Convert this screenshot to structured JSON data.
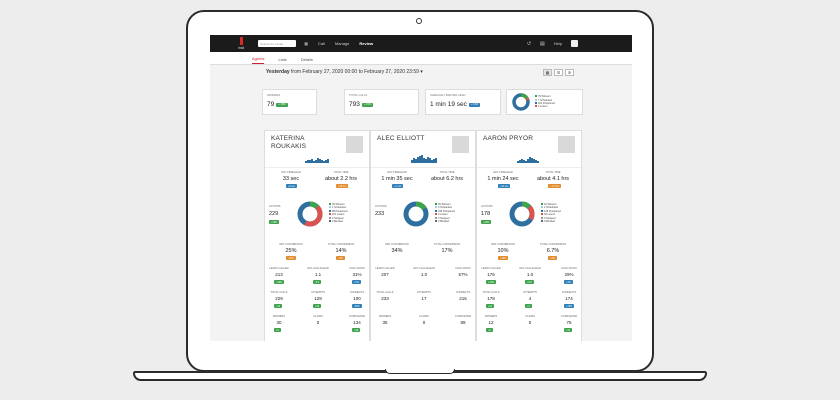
{
  "app": {
    "logo_text": "insit"
  },
  "topbar": {
    "search_placeholder": "Search for a lead",
    "nav": [
      {
        "label": "Call"
      },
      {
        "label": "Manage"
      },
      {
        "label": "Review"
      }
    ],
    "help_label": "Help"
  },
  "tabs": [
    {
      "label": "Agents"
    },
    {
      "label": "Lists"
    },
    {
      "label": "Details"
    }
  ],
  "date_filter": {
    "prefix": "Yesterday",
    "range": "from February 27, 2020 00:00 to February 27, 2020 23:59"
  },
  "summary": {
    "winners": {
      "label": "Winners",
      "value": "79",
      "badge": "+ 18%"
    },
    "total_calls": {
      "label": "Total Calls",
      "value": "793",
      "badge": "+ 15%"
    },
    "avg_time": {
      "label": "Average Time Per Lead",
      "value": "1 min 19 sec",
      "badge": "+ 11%"
    },
    "legend": [
      "79 Winners",
      "7 Scheduled",
      "424 Postponed",
      "3 Losers"
    ]
  },
  "agents": [
    {
      "name": "KATERINA ROUKAKIS",
      "avg_time_label": "Avg time/lead",
      "avg_time": "33 sec",
      "avg_badge": "+9 sec",
      "total_time_label": "Total time",
      "total_time": "about 2.2 hrs",
      "total_badge": "+19 hrs",
      "actions_label": "Actions",
      "actions": "229",
      "actions_badge": "+19%",
      "legend": [
        "30 Winners",
        "1 Scheduled",
        "98 Postponed",
        "101 Losers",
        "0 Stopped",
        "0 Blocked"
      ],
      "net_conv_label": "Net conversion",
      "net_conv": "25%",
      "net_badge": "-13%",
      "tot_conv_label": "Total conversion",
      "tot_conv": "14%",
      "tot_badge": "+3%",
      "leads_called_label": "Leads called",
      "leads_called": "213",
      "lc_badge": "+19%",
      "avg_calls_label": "Avg calls/lead",
      "avg_calls": "1.1",
      "ac_badge": "-0.0",
      "cold_ratio_label": "Cold ratio",
      "cold_ratio": "31%",
      "cr_badge": "+7%",
      "total_calls_label": "Total calls",
      "total_calls": "229",
      "tc_badge": "+14",
      "attempts_label": "Attempts",
      "attempts": "129",
      "at_badge": "+44",
      "connects_label": "Connects",
      "connects": "100",
      "co_badge": "-40%",
      "winners_label": "Winners",
      "winners": "30",
      "wi_badge": "+9",
      "claims_label": "Claims",
      "claims": "0",
      "completed_label": "Completed",
      "completed": "134",
      "cp_badge": "+18"
    },
    {
      "name": "ALEC ELLIOTT",
      "avg_time_label": "Avg time/lead",
      "avg_time": "1 min 35 sec",
      "avg_badge": "+1 min",
      "total_time_label": "Total time",
      "total_time": "about 6.2 hrs",
      "total_badge": "",
      "actions_label": "Actions",
      "actions": "233",
      "actions_badge": "",
      "legend": [
        "35 Winners",
        "0 Scheduled",
        "198 Postponed",
        "0 Losers",
        "0 Stopped",
        "0 Blocked"
      ],
      "net_conv_label": "Net conversion",
      "net_conv": "34%",
      "net_badge": "",
      "tot_conv_label": "Total conversion",
      "tot_conv": "17%",
      "tot_badge": "",
      "leads_called_label": "Leads called",
      "leads_called": "207",
      "lc_badge": "",
      "avg_calls_label": "Avg calls/lead",
      "avg_calls": "1.0",
      "ac_badge": "",
      "cold_ratio_label": "Cold ratio",
      "cold_ratio": "57%",
      "cr_badge": "",
      "total_calls_label": "Total calls",
      "total_calls": "233",
      "tc_badge": "",
      "attempts_label": "Attempts",
      "attempts": "17",
      "at_badge": "",
      "connects_label": "Connects",
      "connects": "216",
      "co_badge": "",
      "winners_label": "Winners",
      "winners": "35",
      "wi_badge": "",
      "claims_label": "Claims",
      "claims": "0",
      "completed_label": "Completed",
      "completed": "89",
      "cp_badge": ""
    },
    {
      "name": "AARON PRYOR",
      "avg_time_label": "Avg time/lead",
      "avg_time": "1 min 24 sec",
      "avg_badge": "+34 sec",
      "total_time_label": "Total time",
      "total_time": "about 4.1 hrs",
      "total_badge": "+ 3.0 hrs",
      "actions_label": "Actions",
      "actions": "178",
      "actions_badge": "+13%",
      "legend": [
        "12 Winners",
        "2 Scheduled",
        "128 Postponed",
        "36 Losers",
        "0 Stopped",
        "0 Blocked"
      ],
      "net_conv_label": "Net conversion",
      "net_conv": "10%",
      "net_badge": "+13%",
      "tot_conv_label": "Total conversion",
      "tot_conv": "6.7%",
      "tot_badge": "+3%",
      "leads_called_label": "Leads called",
      "leads_called": "176",
      "lc_badge": "+13%",
      "avg_calls_label": "Avg calls/lead",
      "avg_calls": "1.0",
      "ac_badge": "+0.0",
      "cold_ratio_label": "Cold ratio",
      "cold_ratio": "29%",
      "cr_badge": "+4%",
      "total_calls_label": "Total calls",
      "total_calls": "178",
      "tc_badge": "+14",
      "attempts_label": "Attempts",
      "attempts": "4",
      "at_badge": "+4",
      "connects_label": "Connects",
      "connects": "174",
      "co_badge": "+15%",
      "winners_label": "Winners",
      "winners": "12",
      "wi_badge": "+3",
      "claims_label": "Claims",
      "claims": "0",
      "completed_label": "Completed",
      "completed": "75",
      "cp_badge": "+10"
    }
  ],
  "colors": {
    "winner": "#3fa34d",
    "scheduled": "#9dd0e8",
    "postponed": "#2f6f9f",
    "loser": "#d9534f",
    "accent": "#cc2233"
  }
}
